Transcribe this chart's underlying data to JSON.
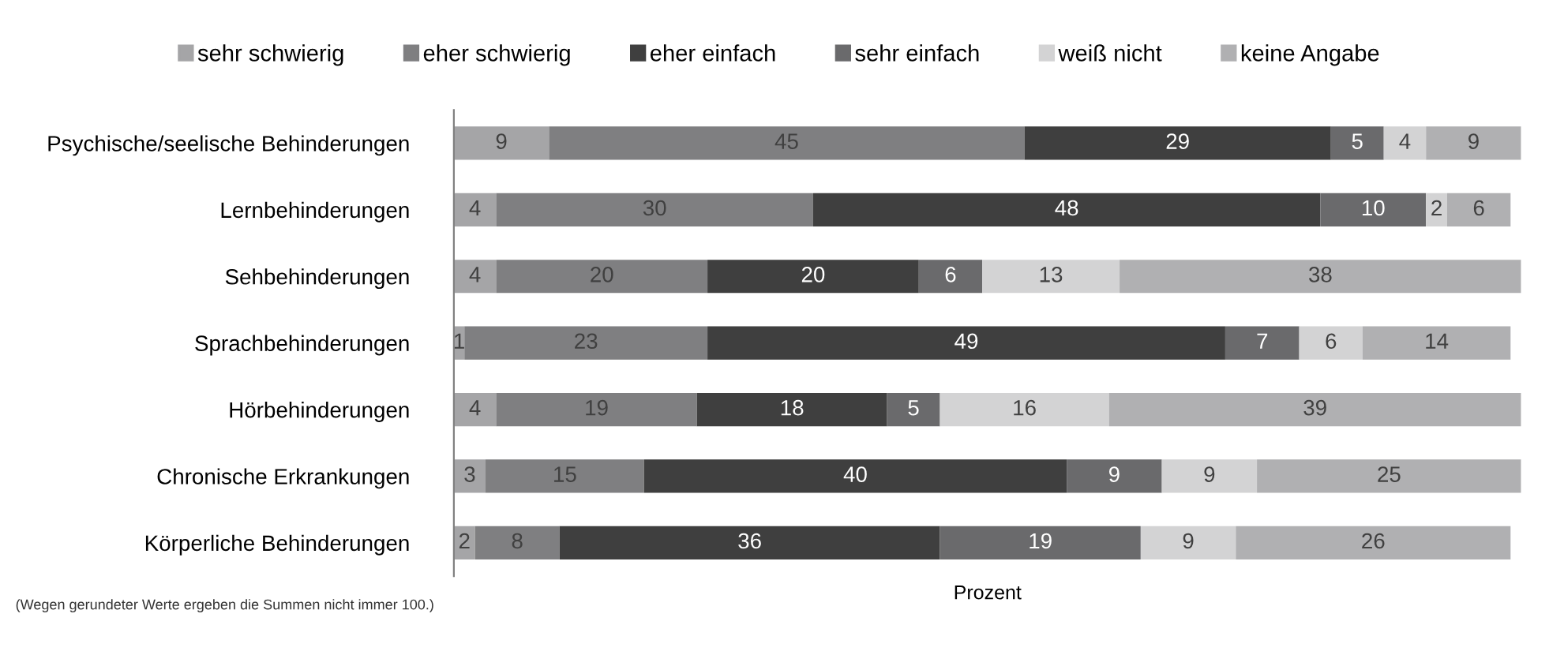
{
  "chart_data": {
    "type": "bar",
    "orientation": "horizontal",
    "stacked": true,
    "data_labels": true,
    "legend": "top",
    "grid": false,
    "xlabel": "Prozent",
    "annotations": [
      "(Wegen gerundeter Werte ergeben die Summen nicht immer 100.)"
    ],
    "categories": [
      "Psychische/seelische Behinderungen",
      "Lernbehinderungen",
      "Sehbehinderungen",
      "Sprachbehinderungen",
      "Hörbehinderungen",
      "Chronische Erkrankungen",
      "Körperliche Behinderungen"
    ],
    "series": [
      {
        "name": "sehr schwierig",
        "color": "#a5a5a7",
        "values": [
          9,
          4,
          4,
          1,
          4,
          3,
          2
        ]
      },
      {
        "name": "eher schwierig",
        "color": "#7f7f81",
        "values": [
          45,
          30,
          20,
          23,
          19,
          15,
          8
        ]
      },
      {
        "name": "eher einfach",
        "color": "#3f3f3f",
        "values": [
          29,
          48,
          20,
          49,
          18,
          40,
          36
        ]
      },
      {
        "name": "sehr einfach",
        "color": "#6a6a6c",
        "values": [
          5,
          10,
          6,
          7,
          5,
          9,
          19
        ]
      },
      {
        "name": "weiß nicht",
        "color": "#d3d3d4",
        "values": [
          4,
          2,
          13,
          6,
          16,
          9,
          9
        ]
      },
      {
        "name": "keine Angabe",
        "color": "#b0b0b2",
        "values": [
          9,
          6,
          38,
          14,
          39,
          25,
          26
        ]
      }
    ]
  }
}
